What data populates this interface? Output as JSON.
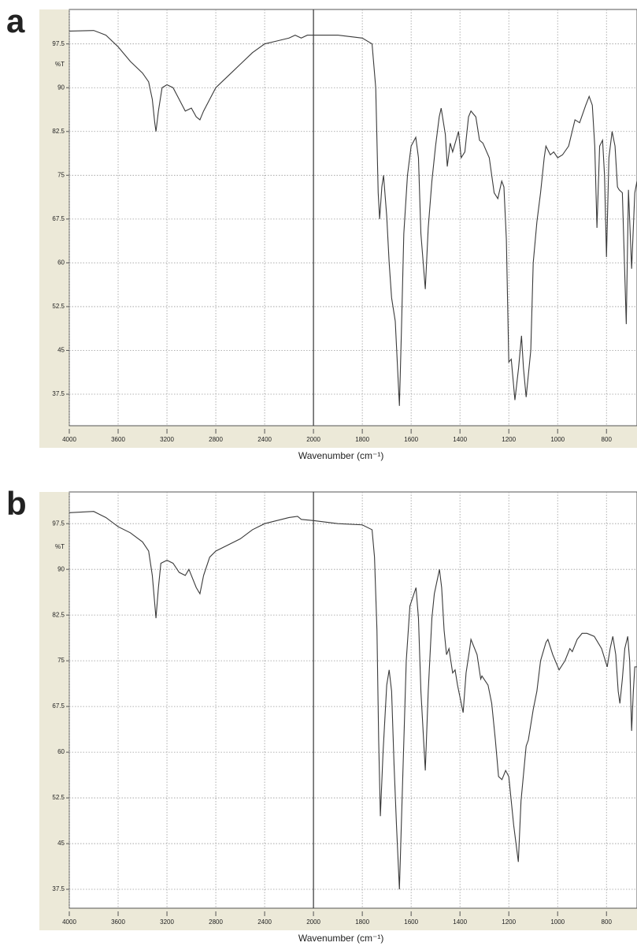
{
  "chart_data": [
    {
      "type": "line",
      "panel_label": "a",
      "ylabel": "%T",
      "xlabel": "Wavenumber (cm⁻¹)",
      "xlim": [
        4000,
        675
      ],
      "x_scale_break": 2000,
      "xticks": [
        4000,
        3600,
        3200,
        2800,
        2400,
        2000,
        1800,
        1600,
        1400,
        1200,
        1000,
        800
      ],
      "ylim": [
        32.1,
        103.4
      ],
      "yticks": [
        97.5,
        90,
        82.5,
        75,
        67.5,
        60,
        52.5,
        45,
        37.5
      ],
      "grid": true,
      "color": "#3a3a3a",
      "x": [
        4000,
        3800,
        3700,
        3600,
        3500,
        3400,
        3350,
        3320,
        3300,
        3290,
        3270,
        3240,
        3200,
        3150,
        3100,
        3050,
        3000,
        2960,
        2930,
        2900,
        2850,
        2800,
        2700,
        2600,
        2500,
        2400,
        2300,
        2200,
        2150,
        2100,
        2050,
        2000,
        1900,
        1800,
        1760,
        1745,
        1735,
        1729,
        1720,
        1713,
        1700,
        1690,
        1680,
        1665,
        1648,
        1640,
        1630,
        1615,
        1600,
        1581,
        1570,
        1560,
        1542,
        1530,
        1515,
        1500,
        1485,
        1477,
        1460,
        1452,
        1440,
        1430,
        1406,
        1395,
        1380,
        1365,
        1355,
        1335,
        1320,
        1306,
        1280,
        1260,
        1245,
        1229,
        1220,
        1210,
        1200,
        1190,
        1175,
        1160,
        1148,
        1140,
        1129,
        1110,
        1100,
        1085,
        1070,
        1055,
        1048,
        1030,
        1016,
        1000,
        980,
        955,
        929,
        910,
        885,
        871,
        858,
        848,
        839,
        828,
        816,
        808,
        800,
        790,
        777,
        765,
        755,
        748,
        735,
        719,
        710,
        697,
        684,
        675
      ],
      "values": [
        99.7,
        99.8,
        99,
        97,
        94.5,
        92.5,
        91,
        88,
        84,
        82.5,
        86,
        90,
        90.5,
        90,
        88,
        86,
        86.5,
        85,
        84.5,
        86,
        88,
        90,
        92,
        94,
        96,
        97.5,
        98,
        98.5,
        99,
        98.5,
        99,
        99,
        99,
        98.5,
        97.5,
        90,
        72,
        67.5,
        73,
        75,
        68,
        60,
        54,
        50,
        35.5,
        48,
        65,
        75,
        80,
        81.5,
        78,
        65,
        55.5,
        66,
        74,
        80,
        85,
        86.5,
        82,
        76.5,
        80.5,
        79,
        82.5,
        78,
        79,
        85,
        86,
        85,
        81,
        80.5,
        78,
        72,
        71,
        74,
        73,
        64,
        43,
        43.5,
        36.5,
        42,
        47.5,
        42,
        37,
        45,
        60,
        67,
        72,
        78,
        80,
        78.5,
        79,
        78,
        78.5,
        80,
        84.5,
        84,
        87,
        88.5,
        87,
        80,
        66,
        80,
        81,
        75,
        61,
        78,
        82.5,
        80,
        73,
        72.5,
        72,
        49.5,
        72.5,
        59,
        72,
        74
      ]
    },
    {
      "type": "line",
      "panel_label": "b",
      "ylabel": "%T",
      "xlabel": "Wavenumber (cm⁻¹)",
      "xlim": [
        4000,
        675
      ],
      "x_scale_break": 2000,
      "xticks": [
        4000,
        3600,
        3200,
        2800,
        2400,
        2000,
        1800,
        1600,
        1400,
        1200,
        1000,
        800
      ],
      "ylim": [
        34.4,
        102.7
      ],
      "yticks": [
        97.5,
        90,
        82.5,
        75,
        67.5,
        60,
        52.5,
        45,
        37.5
      ],
      "grid": true,
      "color": "#3a3a3a",
      "x": [
        4000,
        3800,
        3700,
        3600,
        3500,
        3400,
        3350,
        3320,
        3290,
        3270,
        3250,
        3200,
        3150,
        3100,
        3050,
        3020,
        3000,
        2960,
        2930,
        2900,
        2850,
        2800,
        2700,
        2600,
        2500,
        2400,
        2300,
        2200,
        2130,
        2100,
        2000,
        1900,
        1800,
        1760,
        1750,
        1740,
        1733,
        1726,
        1715,
        1700,
        1690,
        1680,
        1670,
        1660,
        1648,
        1635,
        1620,
        1605,
        1580,
        1570,
        1560,
        1542,
        1530,
        1515,
        1505,
        1484,
        1475,
        1465,
        1455,
        1445,
        1430,
        1420,
        1410,
        1387,
        1375,
        1360,
        1355,
        1330,
        1315,
        1310,
        1285,
        1270,
        1255,
        1242,
        1228,
        1213,
        1200,
        1190,
        1180,
        1161,
        1150,
        1129,
        1120,
        1100,
        1085,
        1070,
        1048,
        1040,
        1020,
        994,
        970,
        950,
        940,
        920,
        900,
        880,
        850,
        820,
        797,
        785,
        774,
        762,
        752,
        745,
        735,
        725,
        713,
        705,
        697,
        690,
        684,
        675
      ],
      "values": [
        99.3,
        99.5,
        98.5,
        97,
        96,
        94.5,
        93,
        89,
        82,
        87,
        91,
        91.5,
        91,
        89.5,
        89,
        90,
        89,
        87,
        86,
        89,
        92,
        93,
        94,
        95,
        96.5,
        97.5,
        98,
        98.5,
        98.7,
        98.2,
        98,
        97.5,
        97.3,
        96.5,
        92,
        80,
        62,
        49.5,
        60,
        71,
        73.5,
        70,
        58,
        48,
        37.5,
        55,
        75,
        84,
        87,
        82,
        70,
        57,
        70,
        82,
        86,
        90,
        87,
        80,
        76,
        77,
        73,
        73.5,
        71,
        66.5,
        73,
        77,
        78.5,
        76,
        72,
        72.5,
        71,
        68,
        62,
        56,
        55.5,
        57,
        56,
        52,
        48,
        42,
        52,
        61,
        62,
        67,
        70,
        75,
        78,
        78.5,
        76,
        73.5,
        75,
        77,
        76.5,
        78.5,
        79.5,
        79.5,
        79,
        77,
        74,
        77,
        79,
        76,
        70,
        68,
        72,
        77,
        79,
        75,
        63.5,
        70,
        74,
        74
      ]
    }
  ]
}
